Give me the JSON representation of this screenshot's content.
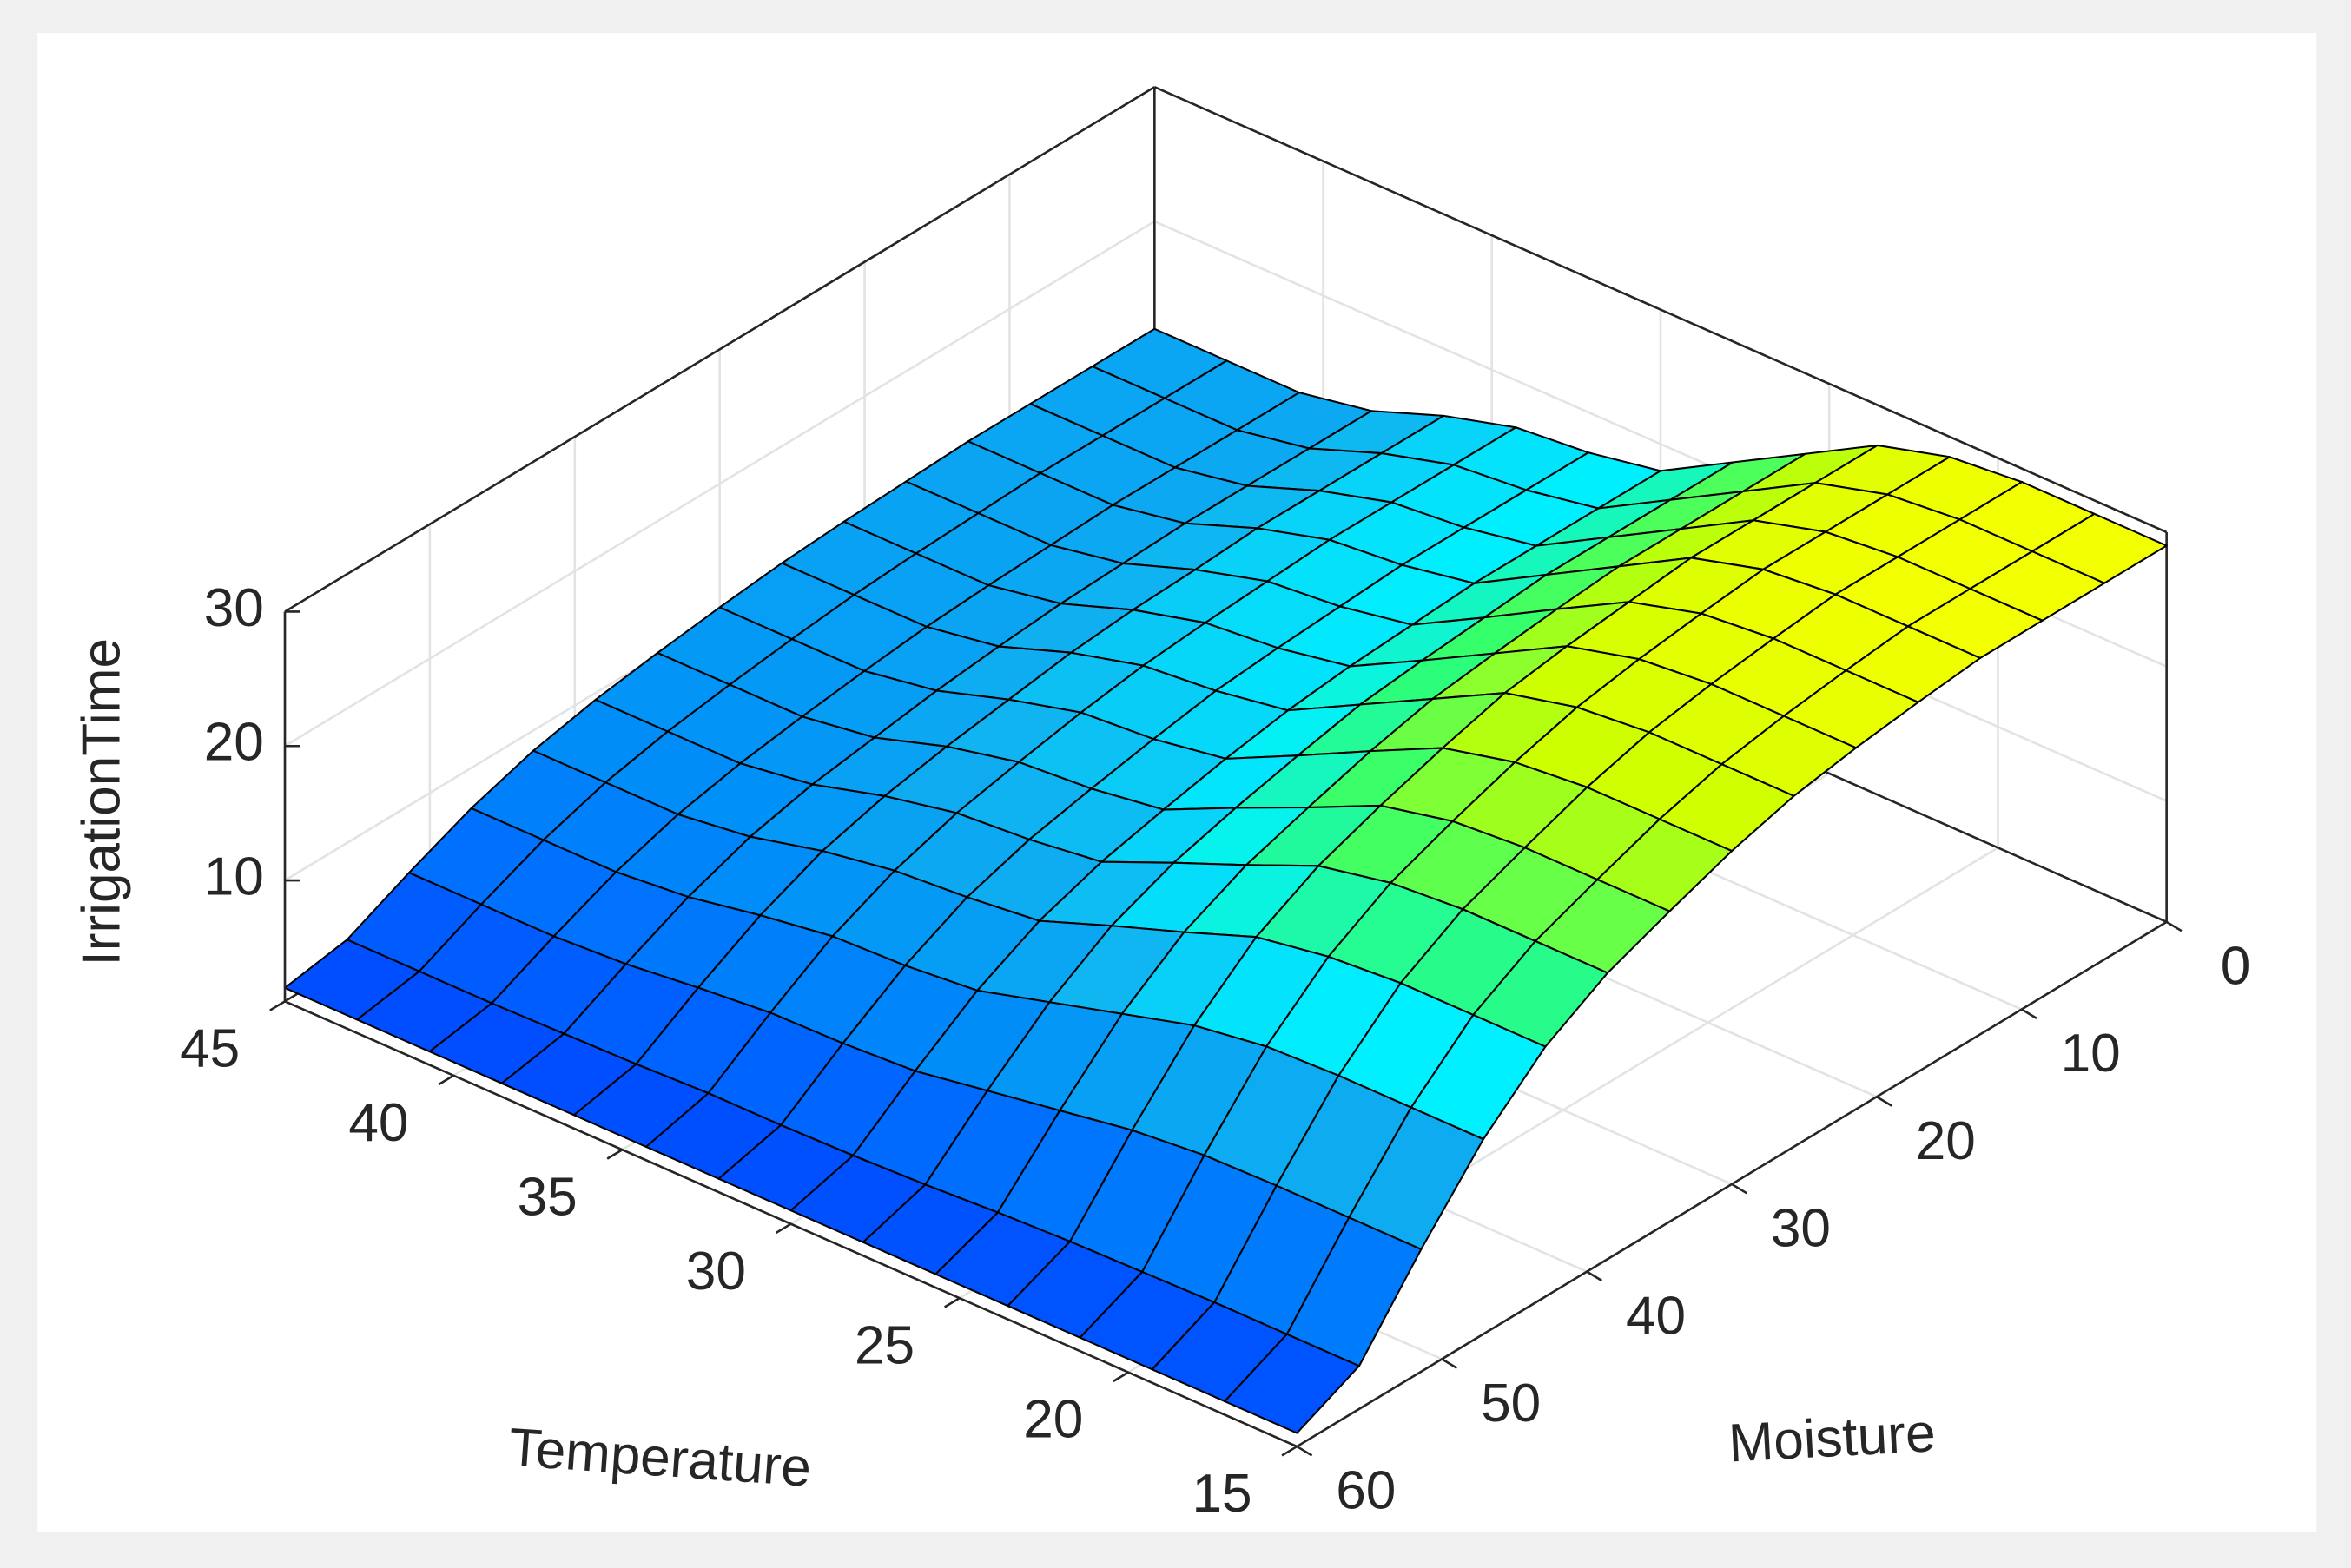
{
  "chart_data": {
    "type": "surface",
    "x_label": "Temperature",
    "y_label": "Moisture",
    "z_label": "IrrigationTime",
    "x": [
      15,
      17.14,
      19.29,
      21.43,
      23.57,
      25.71,
      27.86,
      30,
      32.14,
      34.29,
      36.43,
      38.57,
      40.71,
      42.86,
      45
    ],
    "y": [
      0,
      4.29,
      8.57,
      12.86,
      17.14,
      21.43,
      25.71,
      30,
      34.29,
      38.57,
      42.86,
      47.14,
      51.43,
      55.71,
      60
    ],
    "z": [
      [
        29,
        29,
        29,
        28.5,
        27,
        24,
        21,
        18,
        17,
        16.5,
        15,
        13,
        12,
        12,
        12
      ],
      [
        29,
        29,
        29,
        28.5,
        27,
        24,
        21,
        18,
        17,
        16.5,
        15,
        13,
        12,
        12,
        12
      ],
      [
        29,
        29,
        29,
        28.5,
        27,
        24,
        21,
        18,
        17,
        16.5,
        15,
        13,
        12,
        12,
        12
      ],
      [
        29,
        29,
        29,
        28.5,
        27,
        24,
        21,
        18,
        17,
        16.5,
        15,
        13,
        12,
        12,
        12
      ],
      [
        28.5,
        28.5,
        28.5,
        28.0,
        26.5,
        23.6,
        20.6,
        17.7,
        16.7,
        16.2,
        14.7,
        12.8,
        11.8,
        11.8,
        11.8
      ],
      [
        27.9,
        27.9,
        27.9,
        27.4,
        26.0,
        23.1,
        20.2,
        17.4,
        16.4,
        15.9,
        14.5,
        12.6,
        11.6,
        11.6,
        11.6
      ],
      [
        27.1,
        27.1,
        27.1,
        26.6,
        25.3,
        22.5,
        19.7,
        16.9,
        16.0,
        15.5,
        14.1,
        12.2,
        11.3,
        11.3,
        11.3
      ],
      [
        25.8,
        25.8,
        25.8,
        25.3,
        24.0,
        21.4,
        18.7,
        16.1,
        15.2,
        14.8,
        13.4,
        11.7,
        10.8,
        10.8,
        10.8
      ],
      [
        24.1,
        24.1,
        24.1,
        23.7,
        22.5,
        20.0,
        17.6,
        15.1,
        14.3,
        13.9,
        12.7,
        11.0,
        10.2,
        10.2,
        10.2
      ],
      [
        22.3,
        22.3,
        22.3,
        21.9,
        20.8,
        18.5,
        16.3,
        14.0,
        13.3,
        12.9,
        11.8,
        10.3,
        9.5,
        9.5,
        9.5
      ],
      [
        19.6,
        19.6,
        19.6,
        19.2,
        18.3,
        16.3,
        14.4,
        12.4,
        11.8,
        11.4,
        10.5,
        9.2,
        8.5,
        8.5,
        8.5
      ],
      [
        15.5,
        15.5,
        15.5,
        15.3,
        14.5,
        13.0,
        11.5,
        10.0,
        9.5,
        9.3,
        8.5,
        7.5,
        7.0,
        7.0,
        7.0
      ],
      [
        10.1,
        10.1,
        10.1,
        10.0,
        9.5,
        8.6,
        7.7,
        6.8,
        6.5,
        6.4,
        5.9,
        5.3,
        5.0,
        5.0,
        5.0
      ],
      [
        4.2,
        4.2,
        4.2,
        4.1,
        4.0,
        3.8,
        3.5,
        3.3,
        3.2,
        3.2,
        3.0,
        2.9,
        2.8,
        2.8,
        2.8
      ],
      [
        2,
        2,
        2,
        2,
        2,
        2,
        2,
        2,
        2,
        2,
        2,
        2,
        2,
        2,
        2
      ]
    ],
    "xlim": [
      15,
      45
    ],
    "ylim": [
      0,
      60
    ],
    "zlim": [
      1,
      30
    ],
    "xticks": [
      15,
      20,
      25,
      30,
      35,
      40,
      45
    ],
    "yticks": [
      0,
      10,
      20,
      30,
      40,
      50,
      60
    ],
    "zticks": [
      10,
      20,
      30
    ],
    "grid": true,
    "colormap": [
      "#0040ff",
      "#0068ff",
      "#0090f8",
      "#10b0f0",
      "#00f0ff",
      "#30ff70",
      "#c8ff00",
      "#ffff00"
    ],
    "edge_color": "#000000"
  }
}
